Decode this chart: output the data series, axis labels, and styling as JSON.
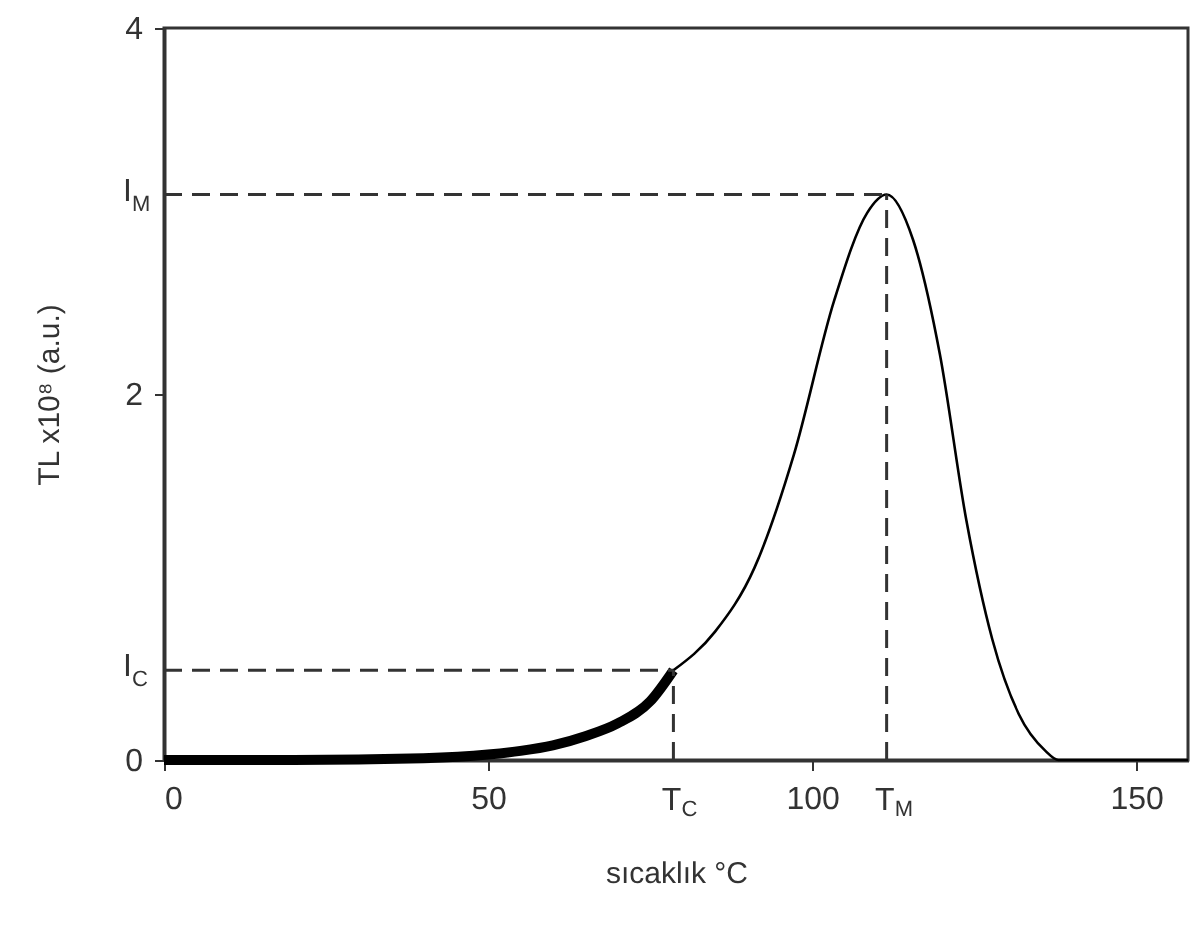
{
  "chart_data": {
    "type": "line",
    "xlabel": "sıcaklık   °C",
    "ylabel": "TL x10⁸ (a.u.)",
    "xlim": [
      0,
      158
    ],
    "ylim": [
      0,
      4
    ],
    "xticks": [
      0,
      50,
      100,
      150
    ],
    "yticks": [
      0,
      2,
      4
    ],
    "marker": "none",
    "line_style": "solid",
    "series": [
      {
        "color": "#000000",
        "x": [
          0,
          20,
          40,
          50,
          55,
          60,
          65,
          70,
          75,
          78.6
        ],
        "values": [
          0,
          0,
          0.01,
          0.03,
          0.05,
          0.08,
          0.13,
          0.2,
          0.32,
          0.49
        ]
      },
      {
        "color": "#000000",
        "x": [
          78.6,
          85,
          91.1,
          97.2,
          103.4,
          108.5,
          111.5,
          115.6,
          119.7,
          123.8,
          127.8,
          131.9,
          136,
          138,
          158
        ],
        "values": [
          0.49,
          0.7,
          1.05,
          1.67,
          2.51,
          2.99,
          3.09,
          2.84,
          2.22,
          1.31,
          0.66,
          0.25,
          0.05,
          0,
          0
        ]
      }
    ],
    "ref_lines": [
      {
        "axis": "y",
        "value": 3.09,
        "label": "I$_{M}$",
        "line_style": "dashed",
        "color": "#333333"
      },
      {
        "axis": "y",
        "value": 0.49,
        "label": "I$_{C}$",
        "line_style": "dashed",
        "color": "#333333"
      },
      {
        "axis": "x",
        "value": 111.5,
        "label": "T$_{M}$",
        "line_style": "dashed",
        "color": "#333333"
      },
      {
        "axis": "x",
        "value": 78.6,
        "label": "T$_{C}$",
        "line_style": "dashed",
        "color": "#333333"
      }
    ]
  }
}
